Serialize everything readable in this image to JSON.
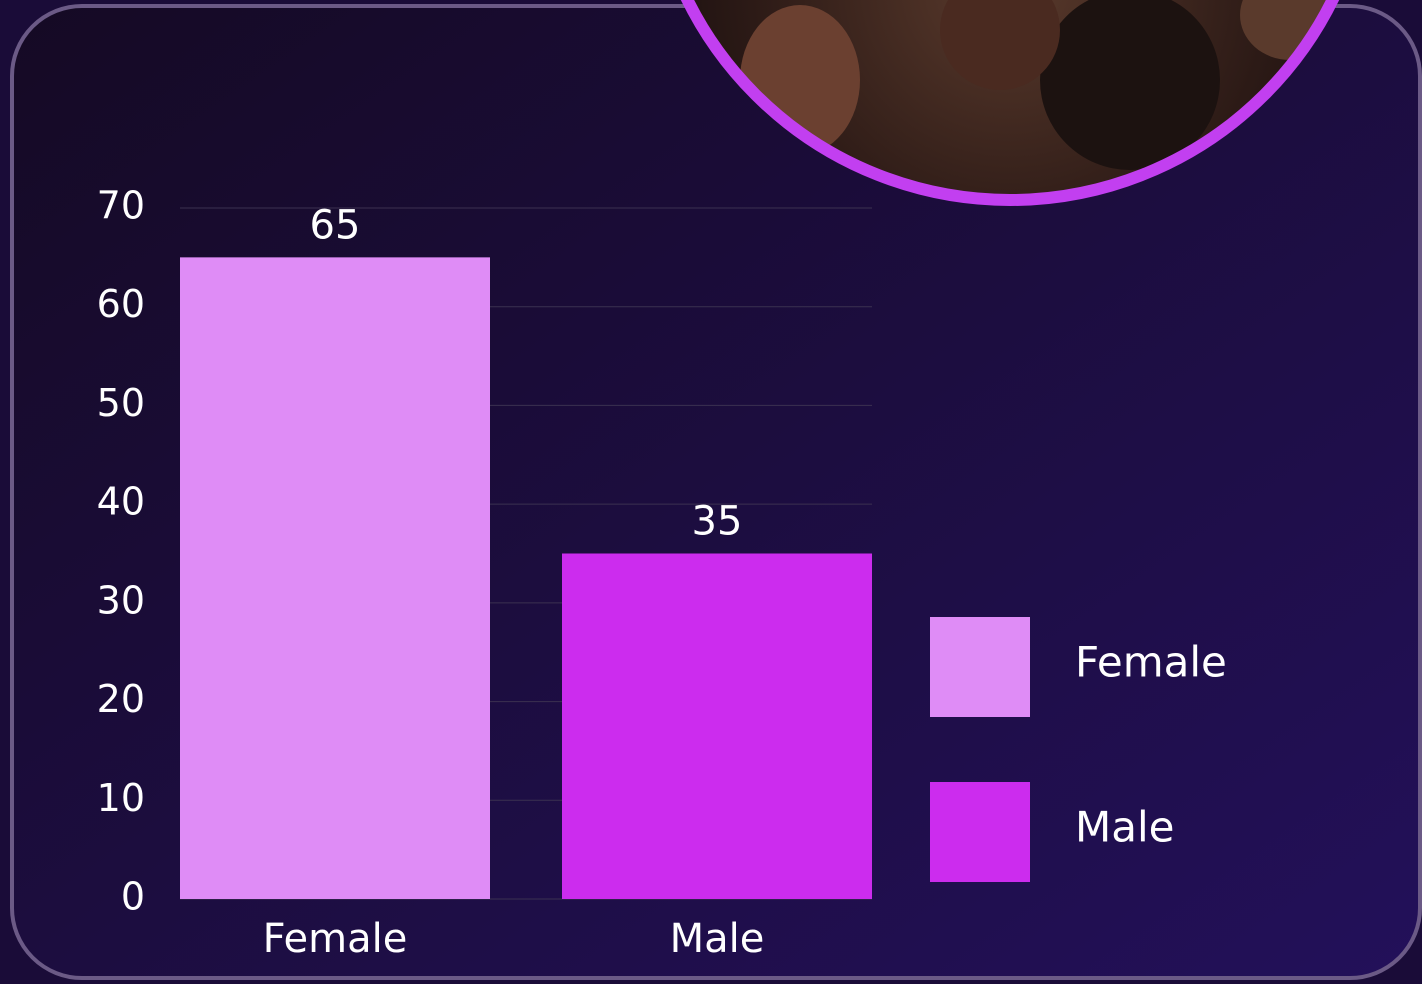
{
  "chart_data": {
    "type": "bar",
    "categories": [
      "Female",
      "Male"
    ],
    "values": [
      65,
      35
    ],
    "colors": [
      "#df8cf6",
      "#cc2cee"
    ],
    "ylim": [
      0,
      70
    ],
    "yticks": [
      0,
      10,
      20,
      30,
      40,
      50,
      60,
      70
    ],
    "grid": true,
    "legend": "right",
    "data_labels": true
  }
}
